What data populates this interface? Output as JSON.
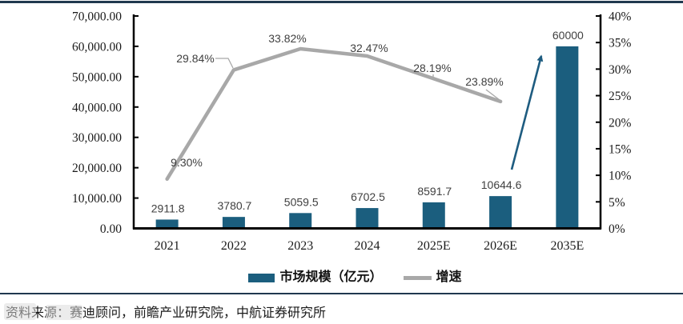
{
  "source_note": "资料来源：赛迪顾问，前瞻产业研究院，中航证券研究所",
  "legend": {
    "items": [
      {
        "label": "市场规模（亿元）",
        "swatch": "bar"
      },
      {
        "label": "增速",
        "swatch": "line"
      }
    ]
  },
  "colors": {
    "bar": "#1B5E7E",
    "line": "#A8A8A8",
    "arrow": "#1E5C80",
    "rule": "#20384F",
    "data_label": "#404040",
    "axis": "#000000"
  },
  "chart_data": {
    "type": "bar",
    "title": "",
    "categories": [
      "2021",
      "2022",
      "2023",
      "2024",
      "2025E",
      "2026E",
      "2035E"
    ],
    "series": [
      {
        "name": "市场规模（亿元）",
        "type": "bar",
        "axis": "left",
        "values": [
          2911.8,
          3780.7,
          5059.5,
          6702.5,
          8591.7,
          10644.6,
          60000
        ],
        "labels": [
          "2911.8",
          "3780.7",
          "5059.5",
          "6702.5",
          "8591.7",
          "10644.6",
          "60000"
        ]
      },
      {
        "name": "增速",
        "type": "line",
        "axis": "right",
        "values": [
          9.3,
          29.84,
          33.82,
          32.47,
          28.19,
          23.89
        ],
        "labels": [
          "9.30%",
          "29.84%",
          "33.82%",
          "32.47%",
          "28.19%",
          "23.89%"
        ]
      }
    ],
    "left_axis": {
      "min": 0,
      "max": 70000,
      "tick_labels": [
        "0.00",
        "10,000.00",
        "20,000.00",
        "30,000.00",
        "40,000.00",
        "50,000.00",
        "60,000.00",
        "70,000.00"
      ]
    },
    "right_axis": {
      "min": 0,
      "max": 40,
      "tick_labels": [
        "0%",
        "5%",
        "10%",
        "15%",
        "20%",
        "25%",
        "30%",
        "35%",
        "40%"
      ]
    },
    "annotation_arrow": {
      "from_category": "2026E",
      "to_category": "2035E"
    },
    "grid": false,
    "legend_position": "bottom"
  }
}
